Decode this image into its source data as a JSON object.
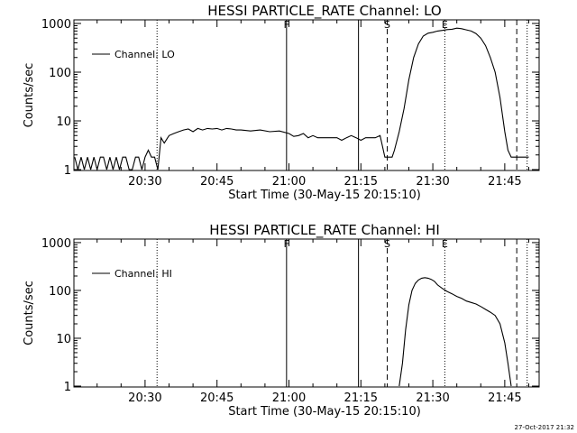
{
  "footer": {
    "stamp": "27-Oct-2017 21:32"
  },
  "chart_data": [
    {
      "type": "line",
      "title": "HESSI PARTICLE_RATE Channel: LO",
      "xlabel": "Start Time (30-May-15 20:15:10)",
      "ylabel": "Counts/sec",
      "y_scale": "log",
      "ylim": [
        1,
        1000
      ],
      "xlim": [
        "20:15:10",
        "21:52:10"
      ],
      "x_ticks": [
        "20:30",
        "20:45",
        "21:00",
        "21:15",
        "21:30",
        "21:45"
      ],
      "y_ticks": [
        "1",
        "10",
        "100",
        "1000"
      ],
      "legend": {
        "position": "top-left",
        "entries": [
          "Channel: LO"
        ]
      },
      "markers": [
        {
          "label": "",
          "time": "20:32:30",
          "style": "dotted"
        },
        {
          "label": "F",
          "time": "20:59:30",
          "style": "solid"
        },
        {
          "label": "",
          "time": "21:14:30",
          "style": "solid"
        },
        {
          "label": "S",
          "time": "21:20:30",
          "style": "dashed"
        },
        {
          "label": "E",
          "time": "21:32:30",
          "style": "dotted"
        },
        {
          "label": "",
          "time": "21:47:30",
          "style": "dashed"
        },
        {
          "label": "",
          "time": "21:49:40",
          "style": "dotted"
        }
      ],
      "series": [
        {
          "name": "Channel: LO",
          "x": [
            "20:15:20",
            "20:16:00",
            "20:16:40",
            "20:17:20",
            "20:18:00",
            "20:18:40",
            "20:19:20",
            "20:20:00",
            "20:20:40",
            "20:21:20",
            "20:22:00",
            "20:22:40",
            "20:23:20",
            "20:24:00",
            "20:24:40",
            "20:25:20",
            "20:26:00",
            "20:26:40",
            "20:27:20",
            "20:28:00",
            "20:28:40",
            "20:29:20",
            "20:30:00",
            "20:30:40",
            "20:31:20",
            "20:32:00",
            "20:32:40",
            "20:33:20",
            "20:34:00",
            "20:35:00",
            "20:36:00",
            "20:37:00",
            "20:38:00",
            "20:39:00",
            "20:40:00",
            "20:41:00",
            "20:42:00",
            "20:43:00",
            "20:44:00",
            "20:45:00",
            "20:46:00",
            "20:47:00",
            "20:48:00",
            "20:49:00",
            "20:50:00",
            "20:52:00",
            "20:54:00",
            "20:56:00",
            "20:58:00",
            "21:00:00",
            "21:01:00",
            "21:02:00",
            "21:03:00",
            "21:04:00",
            "21:05:00",
            "21:06:00",
            "21:07:00",
            "21:08:00",
            "21:09:00",
            "21:10:00",
            "21:11:00",
            "21:12:00",
            "21:13:00",
            "21:14:00",
            "21:15:00",
            "21:16:00",
            "21:17:00",
            "21:18:00",
            "21:19:00",
            "21:20:00",
            "21:21:00",
            "21:21:30",
            "21:22:00",
            "21:23:00",
            "21:24:00",
            "21:25:00",
            "21:26:00",
            "21:27:00",
            "21:28:00",
            "21:29:00",
            "21:30:00",
            "21:31:00",
            "21:32:00",
            "21:33:00",
            "21:34:00",
            "21:35:00",
            "21:36:00",
            "21:37:00",
            "21:38:00",
            "21:39:00",
            "21:40:00",
            "21:41:00",
            "21:42:00",
            "21:43:00",
            "21:44:00",
            "21:45:00",
            "21:45:40",
            "21:46:20",
            "21:47:00",
            "21:47:30",
            "21:48:00",
            "21:49:00",
            "21:50:00"
          ],
          "y": [
            1.8,
            1.0,
            1.8,
            1.0,
            1.8,
            1.0,
            1.8,
            1.0,
            1.8,
            1.8,
            1.0,
            1.8,
            1.0,
            1.8,
            1.0,
            1.8,
            1.8,
            1.0,
            1.0,
            1.8,
            1.8,
            1.0,
            1.8,
            2.5,
            1.8,
            1.8,
            1.0,
            4.5,
            3.5,
            5.0,
            5.5,
            6.0,
            6.5,
            6.8,
            6.0,
            7.0,
            6.5,
            7.0,
            6.8,
            7.0,
            6.5,
            7.0,
            6.8,
            6.5,
            6.5,
            6.2,
            6.5,
            6.0,
            6.2,
            5.5,
            4.8,
            5.0,
            5.5,
            4.5,
            5.0,
            4.5,
            4.5,
            4.5,
            4.5,
            4.5,
            4.0,
            4.5,
            5.0,
            4.5,
            4.0,
            4.5,
            4.5,
            4.5,
            5.0,
            1.8,
            1.8,
            1.8,
            2.5,
            6.0,
            18,
            70,
            200,
            380,
            550,
            630,
            660,
            700,
            720,
            750,
            760,
            800,
            780,
            740,
            700,
            620,
            500,
            350,
            200,
            100,
            30,
            6.0,
            2.5,
            1.8,
            1.8,
            1.8,
            1.8,
            1.8,
            1.8
          ]
        }
      ]
    },
    {
      "type": "line",
      "title": "HESSI PARTICLE_RATE Channel: HI",
      "xlabel": "Start Time (30-May-15 20:15:10)",
      "ylabel": "Counts/sec",
      "y_scale": "log",
      "ylim": [
        1,
        1000
      ],
      "xlim": [
        "20:15:10",
        "21:52:10"
      ],
      "x_ticks": [
        "20:30",
        "20:45",
        "21:00",
        "21:15",
        "21:30",
        "21:45"
      ],
      "y_ticks": [
        "1",
        "10",
        "100",
        "1000"
      ],
      "legend": {
        "position": "top-left",
        "entries": [
          "Channel: HI"
        ]
      },
      "markers": [
        {
          "label": "",
          "time": "20:32:30",
          "style": "dotted"
        },
        {
          "label": "F",
          "time": "20:59:30",
          "style": "solid"
        },
        {
          "label": "",
          "time": "21:14:30",
          "style": "solid"
        },
        {
          "label": "S",
          "time": "21:20:30",
          "style": "dashed"
        },
        {
          "label": "E",
          "time": "21:32:30",
          "style": "dotted"
        },
        {
          "label": "",
          "time": "21:47:30",
          "style": "dashed"
        },
        {
          "label": "",
          "time": "21:49:40",
          "style": "dotted"
        }
      ],
      "series": [
        {
          "name": "Channel: HI",
          "x": [
            "21:23:00",
            "21:23:40",
            "21:24:20",
            "21:25:00",
            "21:25:40",
            "21:26:20",
            "21:27:00",
            "21:27:40",
            "21:28:20",
            "21:29:00",
            "21:29:40",
            "21:30:20",
            "21:31:00",
            "21:32:00",
            "21:33:00",
            "21:34:00",
            "21:35:00",
            "21:36:00",
            "21:37:00",
            "21:38:00",
            "21:39:00",
            "21:40:00",
            "21:41:00",
            "21:42:00",
            "21:43:00",
            "21:44:00",
            "21:45:00",
            "21:45:40",
            "21:46:20"
          ],
          "y": [
            1.0,
            3.0,
            15,
            50,
            100,
            140,
            165,
            180,
            185,
            180,
            170,
            155,
            130,
            110,
            95,
            85,
            75,
            68,
            60,
            56,
            52,
            46,
            40,
            35,
            30,
            20,
            8.0,
            3.0,
            1.0
          ]
        }
      ]
    }
  ]
}
